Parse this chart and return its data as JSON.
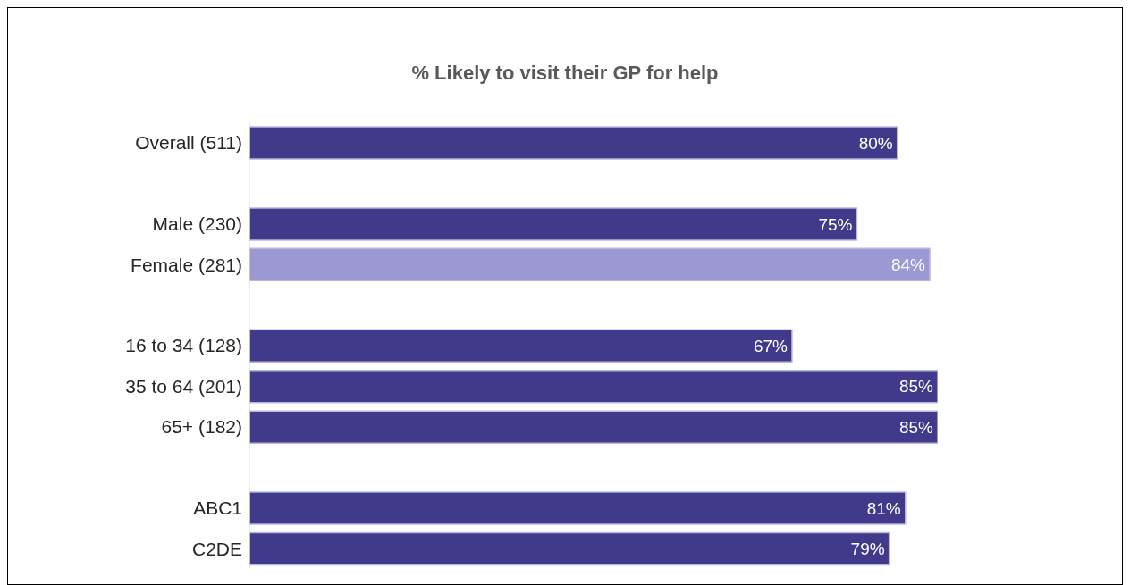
{
  "chart_data": {
    "type": "bar",
    "orientation": "horizontal",
    "title": "% Likely to visit their GP for help",
    "categories": [
      "Overall (511)",
      null,
      "Male (230)",
      "Female (281)",
      null,
      "16 to 34 (128)",
      "35 to 64 (201)",
      "65+ (182)",
      null,
      "ABC1",
      "C2DE"
    ],
    "values": [
      80,
      null,
      75,
      84,
      null,
      67,
      85,
      85,
      null,
      81,
      79
    ],
    "value_labels": [
      "80%",
      null,
      "75%",
      "84%",
      null,
      "67%",
      "85%",
      "85%",
      null,
      "81%",
      "79%"
    ],
    "colors": [
      "#41398a",
      "#41398a",
      "#41398a",
      "#9b98d4",
      "#41398a",
      "#41398a",
      "#41398a",
      "#41398a",
      "#41398a",
      "#41398a",
      "#41398a"
    ],
    "tick_labels": "y",
    "grid": false
  }
}
